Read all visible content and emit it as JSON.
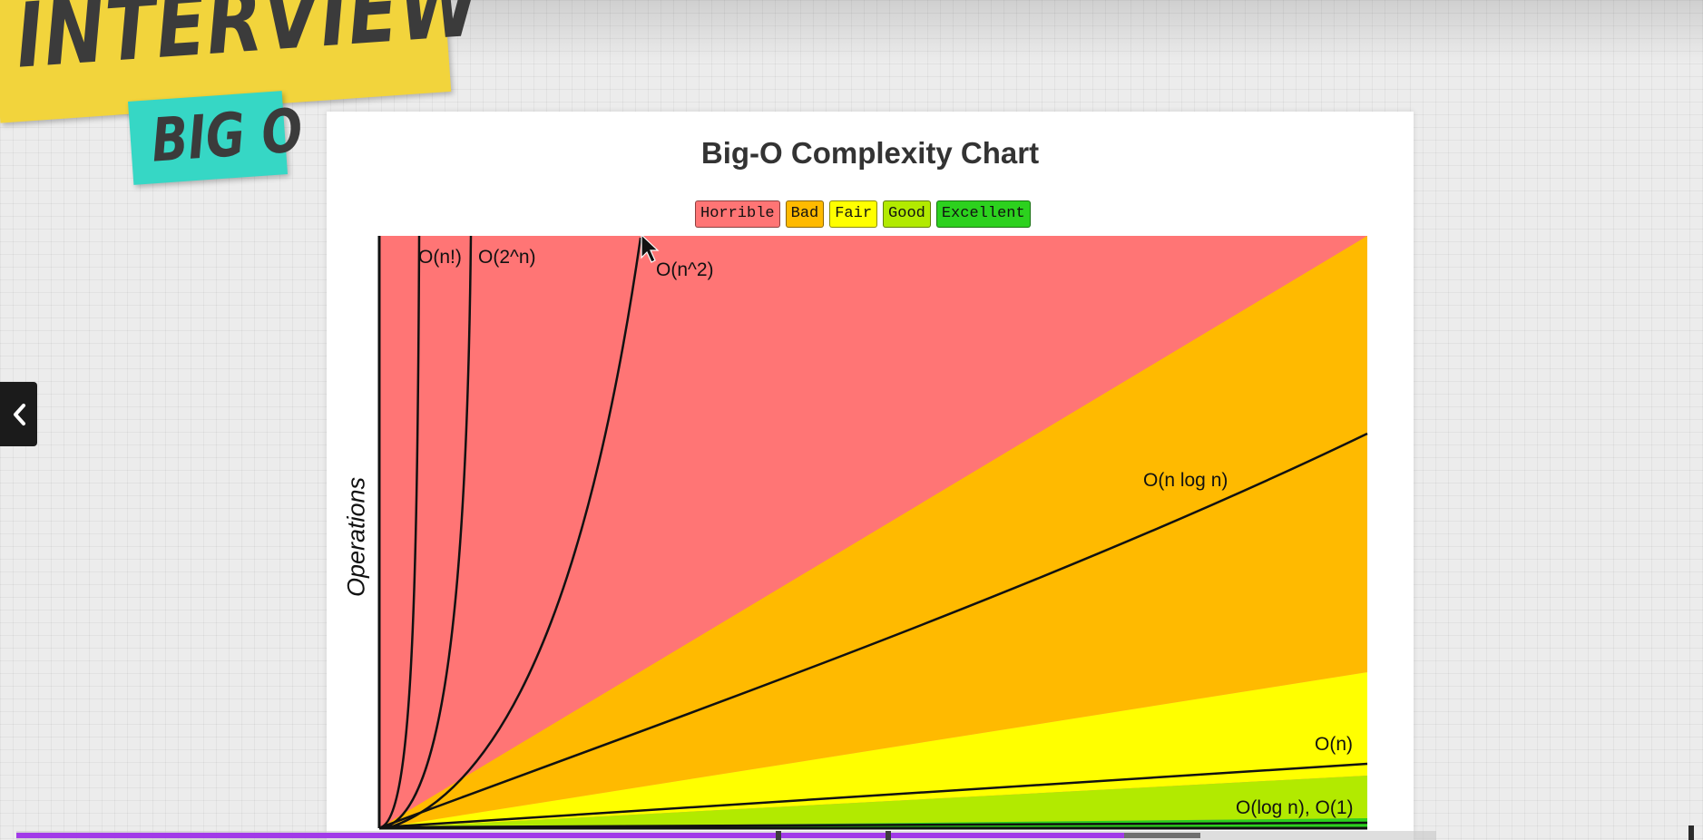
{
  "stickers": {
    "interview": "INTERVIEW",
    "big_o": "BIG O"
  },
  "chart_title": "Big-O Complexity Chart",
  "legend": [
    {
      "label": "Horrible",
      "color": "#ff7575"
    },
    {
      "label": "Bad",
      "color": "#ffba00"
    },
    {
      "label": "Fair",
      "color": "#ffff00"
    },
    {
      "label": "Good",
      "color": "#b2ea00"
    },
    {
      "label": "Excellent",
      "color": "#2cd11e"
    }
  ],
  "chart_data": {
    "type": "line",
    "title": "Big-O Complexity Chart",
    "xlabel": "",
    "ylabel": "Operations",
    "series": [
      {
        "name": "O(n!)"
      },
      {
        "name": "O(2^n)"
      },
      {
        "name": "O(n^2)"
      },
      {
        "name": "O(n log n)"
      },
      {
        "name": "O(n)"
      },
      {
        "name": "O(log n), O(1)"
      }
    ],
    "zones": [
      "Horrible",
      "Bad",
      "Fair",
      "Good",
      "Excellent"
    ]
  },
  "player": {
    "back_icon": "chevron-left-icon",
    "progress_fraction": 0.78,
    "buffered_fraction": 0.834,
    "chapter_marks": [
      0.535,
      0.612
    ]
  }
}
